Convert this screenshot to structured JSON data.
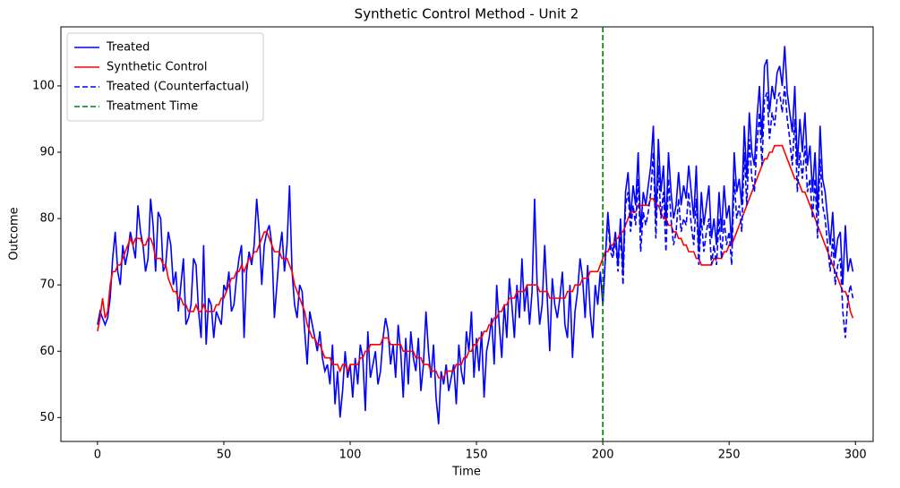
{
  "chart_data": {
    "type": "line",
    "title": "Synthetic Control Method - Unit 2",
    "x_label": "Time",
    "y_label": "Outcome",
    "x": [
      0,
      1,
      2,
      3,
      4,
      5,
      6,
      7,
      8,
      9,
      10,
      11,
      12,
      13,
      14,
      15,
      16,
      17,
      18,
      19,
      20,
      21,
      22,
      23,
      24,
      25,
      26,
      27,
      28,
      29,
      30,
      31,
      32,
      33,
      34,
      35,
      36,
      37,
      38,
      39,
      40,
      41,
      42,
      43,
      44,
      45,
      46,
      47,
      48,
      49,
      50,
      51,
      52,
      53,
      54,
      55,
      56,
      57,
      58,
      59,
      60,
      61,
      62,
      63,
      64,
      65,
      66,
      67,
      68,
      69,
      70,
      71,
      72,
      73,
      74,
      75,
      76,
      77,
      78,
      79,
      80,
      81,
      82,
      83,
      84,
      85,
      86,
      87,
      88,
      89,
      90,
      91,
      92,
      93,
      94,
      95,
      96,
      97,
      98,
      99,
      100,
      101,
      102,
      103,
      104,
      105,
      106,
      107,
      108,
      109,
      110,
      111,
      112,
      113,
      114,
      115,
      116,
      117,
      118,
      119,
      120,
      121,
      122,
      123,
      124,
      125,
      126,
      127,
      128,
      129,
      130,
      131,
      132,
      133,
      134,
      135,
      136,
      137,
      138,
      139,
      140,
      141,
      142,
      143,
      144,
      145,
      146,
      147,
      148,
      149,
      150,
      151,
      152,
      153,
      154,
      155,
      156,
      157,
      158,
      159,
      160,
      161,
      162,
      163,
      164,
      165,
      166,
      167,
      168,
      169,
      170,
      171,
      172,
      173,
      174,
      175,
      176,
      177,
      178,
      179,
      180,
      181,
      182,
      183,
      184,
      185,
      186,
      187,
      188,
      189,
      190,
      191,
      192,
      193,
      194,
      195,
      196,
      197,
      198,
      199,
      200,
      201,
      202,
      203,
      204,
      205,
      206,
      207,
      208,
      209,
      210,
      211,
      212,
      213,
      214,
      215,
      216,
      217,
      218,
      219,
      220,
      221,
      222,
      223,
      224,
      225,
      226,
      227,
      228,
      229,
      230,
      231,
      232,
      233,
      234,
      235,
      236,
      237,
      238,
      239,
      240,
      241,
      242,
      243,
      244,
      245,
      246,
      247,
      248,
      249,
      250,
      251,
      252,
      253,
      254,
      255,
      256,
      257,
      258,
      259,
      260,
      261,
      262,
      263,
      264,
      265,
      266,
      267,
      268,
      269,
      270,
      271,
      272,
      273,
      274,
      275,
      276,
      277,
      278,
      279,
      280,
      281,
      282,
      283,
      284,
      285,
      286,
      287,
      288,
      289,
      290,
      291,
      292,
      293,
      294,
      295,
      296,
      297,
      298,
      299
    ],
    "series": [
      {
        "name": "Treated",
        "color": "#0000ff",
        "dashed": false,
        "values": [
          64,
          66,
          65,
          64,
          65,
          68,
          74,
          78,
          72,
          70,
          76,
          73,
          75,
          78,
          76,
          74,
          82,
          78,
          76,
          72,
          74,
          83,
          79,
          72,
          81,
          80,
          72,
          73,
          78,
          76,
          70,
          72,
          66,
          70,
          74,
          64,
          65,
          67,
          74,
          73,
          66,
          62,
          76,
          61,
          68,
          67,
          62,
          66,
          65,
          64,
          70,
          69,
          72,
          66,
          67,
          71,
          74,
          76,
          62,
          72,
          75,
          73,
          76,
          83,
          78,
          70,
          76,
          78,
          79,
          76,
          65,
          70,
          75,
          78,
          72,
          76,
          85,
          72,
          67,
          65,
          70,
          69,
          63,
          58,
          66,
          64,
          62,
          60,
          63,
          59,
          57,
          58,
          55,
          61,
          52,
          57,
          50,
          54,
          60,
          56,
          58,
          53,
          59,
          55,
          61,
          59,
          51,
          63,
          56,
          58,
          60,
          55,
          57,
          62,
          65,
          63,
          58,
          61,
          56,
          64,
          60,
          53,
          62,
          55,
          63,
          59,
          57,
          62,
          54,
          58,
          66,
          60,
          56,
          61,
          53,
          49,
          57,
          55,
          58,
          54,
          56,
          58,
          52,
          61,
          57,
          55,
          63,
          60,
          66,
          56,
          62,
          57,
          63,
          53,
          60,
          62,
          65,
          58,
          70,
          64,
          59,
          67,
          62,
          71,
          67,
          62,
          70,
          65,
          74,
          66,
          70,
          64,
          69,
          83,
          70,
          64,
          67,
          76,
          68,
          60,
          71,
          67,
          65,
          68,
          72,
          64,
          62,
          70,
          59,
          66,
          69,
          74,
          71,
          65,
          73,
          66,
          62,
          70,
          67,
          72,
          67,
          74,
          81,
          76,
          75,
          78,
          73,
          80,
          72,
          84,
          87,
          80,
          85,
          82,
          90,
          78,
          84,
          82,
          85,
          88,
          94,
          80,
          92,
          84,
          88,
          79,
          90,
          84,
          80,
          82,
          87,
          82,
          85,
          83,
          88,
          84,
          80,
          88,
          75,
          84,
          79,
          82,
          85,
          77,
          80,
          76,
          84,
          78,
          85,
          80,
          82,
          76,
          90,
          84,
          86,
          82,
          94,
          86,
          96,
          90,
          88,
          95,
          100,
          92,
          103,
          104,
          96,
          100,
          98,
          102,
          103,
          100,
          106,
          99,
          96,
          93,
          100,
          88,
          95,
          90,
          96,
          88,
          91,
          84,
          90,
          81,
          94,
          86,
          84,
          80,
          76,
          81,
          74,
          77,
          78,
          70,
          79,
          72,
          74,
          72
        ]
      },
      {
        "name": "Synthetic Control",
        "color": "#ff0000",
        "dashed": false,
        "values": [
          63,
          65,
          68,
          65,
          66,
          70,
          72,
          72,
          73,
          73,
          74,
          75,
          76,
          77,
          76,
          77,
          77,
          77,
          76,
          76,
          77,
          77,
          76,
          74,
          74,
          74,
          73,
          73,
          71,
          70,
          69,
          69,
          68,
          68,
          67,
          67,
          66,
          66,
          66,
          67,
          66,
          66,
          67,
          66,
          66,
          66,
          66,
          67,
          67,
          68,
          68,
          69,
          70,
          71,
          71,
          72,
          72,
          73,
          72,
          73,
          74,
          74,
          75,
          75,
          76,
          77,
          78,
          78,
          77,
          76,
          75,
          75,
          75,
          74,
          74,
          74,
          73,
          72,
          70,
          69,
          68,
          67,
          66,
          64,
          63,
          62,
          62,
          61,
          61,
          60,
          59,
          59,
          59,
          58,
          58,
          58,
          57,
          58,
          58,
          57,
          58,
          58,
          58,
          58,
          59,
          59,
          60,
          60,
          61,
          61,
          61,
          61,
          61,
          62,
          62,
          62,
          61,
          61,
          61,
          61,
          61,
          60,
          60,
          60,
          60,
          60,
          59,
          59,
          59,
          58,
          58,
          58,
          57,
          57,
          57,
          56,
          56,
          56,
          57,
          57,
          57,
          57,
          58,
          58,
          58,
          59,
          59,
          60,
          60,
          61,
          61,
          62,
          62,
          63,
          63,
          64,
          64,
          65,
          65,
          66,
          66,
          67,
          67,
          68,
          68,
          68,
          69,
          69,
          69,
          69,
          70,
          70,
          70,
          70,
          70,
          69,
          69,
          69,
          69,
          68,
          68,
          68,
          68,
          68,
          68,
          68,
          69,
          69,
          69,
          70,
          70,
          70,
          71,
          71,
          71,
          72,
          72,
          72,
          72,
          73,
          74,
          75,
          75,
          76,
          76,
          77,
          77,
          78,
          78,
          79,
          80,
          81,
          81,
          81,
          82,
          82,
          82,
          82,
          82,
          83,
          83,
          82,
          82,
          81,
          80,
          80,
          79,
          79,
          78,
          78,
          77,
          77,
          76,
          76,
          75,
          75,
          75,
          74,
          74,
          73,
          73,
          73,
          73,
          73,
          74,
          74,
          74,
          74,
          75,
          75,
          76,
          76,
          77,
          78,
          79,
          80,
          81,
          82,
          83,
          84,
          85,
          86,
          87,
          88,
          89,
          89,
          90,
          90,
          91,
          91,
          91,
          91,
          90,
          89,
          88,
          87,
          86,
          86,
          85,
          84,
          84,
          83,
          82,
          81,
          80,
          79,
          78,
          77,
          76,
          75,
          74,
          73,
          72,
          71,
          70,
          69,
          69,
          68,
          66,
          65
        ]
      },
      {
        "name": "Treated (Counterfactual)",
        "color": "#0000ff",
        "dashed": true,
        "values": [
          null,
          null,
          null,
          null,
          null,
          null,
          null,
          null,
          null,
          null,
          null,
          null,
          null,
          null,
          null,
          null,
          null,
          null,
          null,
          null,
          null,
          null,
          null,
          null,
          null,
          null,
          null,
          null,
          null,
          null,
          null,
          null,
          null,
          null,
          null,
          null,
          null,
          null,
          null,
          null,
          null,
          null,
          null,
          null,
          null,
          null,
          null,
          null,
          null,
          null,
          null,
          null,
          null,
          null,
          null,
          null,
          null,
          null,
          null,
          null,
          null,
          null,
          null,
          null,
          null,
          null,
          null,
          null,
          null,
          null,
          null,
          null,
          null,
          null,
          null,
          null,
          null,
          null,
          null,
          null,
          null,
          null,
          null,
          null,
          null,
          null,
          null,
          null,
          null,
          null,
          null,
          null,
          null,
          null,
          null,
          null,
          null,
          null,
          null,
          null,
          null,
          null,
          null,
          null,
          null,
          null,
          null,
          null,
          null,
          null,
          null,
          null,
          null,
          null,
          null,
          null,
          null,
          null,
          null,
          null,
          null,
          null,
          null,
          null,
          null,
          null,
          null,
          null,
          null,
          null,
          null,
          null,
          null,
          null,
          null,
          null,
          null,
          null,
          null,
          null,
          null,
          null,
          null,
          null,
          null,
          null,
          null,
          null,
          null,
          null,
          null,
          null,
          null,
          null,
          null,
          null,
          null,
          null,
          null,
          null,
          null,
          null,
          null,
          null,
          null,
          null,
          null,
          null,
          null,
          null,
          null,
          null,
          null,
          null,
          null,
          null,
          null,
          null,
          null,
          null,
          null,
          null,
          null,
          null,
          null,
          null,
          null,
          null,
          null,
          null,
          null,
          null,
          null,
          null,
          null,
          null,
          null,
          null,
          null,
          null,
          67,
          74,
          80,
          75,
          74,
          77,
          72,
          78,
          70,
          82,
          84,
          78,
          82,
          79,
          86,
          75,
          81,
          79,
          81,
          84,
          90,
          77,
          88,
          80,
          84,
          75,
          86,
          80,
          76,
          78,
          83,
          78,
          80,
          79,
          84,
          79,
          76,
          83,
          73,
          80,
          75,
          78,
          80,
          73,
          76,
          73,
          80,
          74,
          80,
          76,
          78,
          73,
          86,
          80,
          82,
          78,
          90,
          82,
          92,
          86,
          84,
          91,
          96,
          88,
          98,
          99,
          92,
          96,
          94,
          98,
          99,
          96,
          100,
          95,
          92,
          88,
          95,
          84,
          90,
          86,
          91,
          84,
          86,
          80,
          86,
          77,
          89,
          82,
          80,
          76,
          72,
          77,
          70,
          73,
          74,
          66,
          62,
          68,
          70,
          68
        ]
      }
    ],
    "vlines": [
      {
        "name": "Treatment Time",
        "x": 200,
        "color": "#008000",
        "dashed": true
      }
    ],
    "xlim": [
      -14.5,
      307
    ],
    "ylim": [
      46.4,
      108.9
    ],
    "xticks": [
      0,
      50,
      100,
      150,
      200,
      250,
      300
    ],
    "yticks": [
      50,
      60,
      70,
      80,
      90,
      100
    ],
    "grid": false,
    "legend": "upper left"
  }
}
